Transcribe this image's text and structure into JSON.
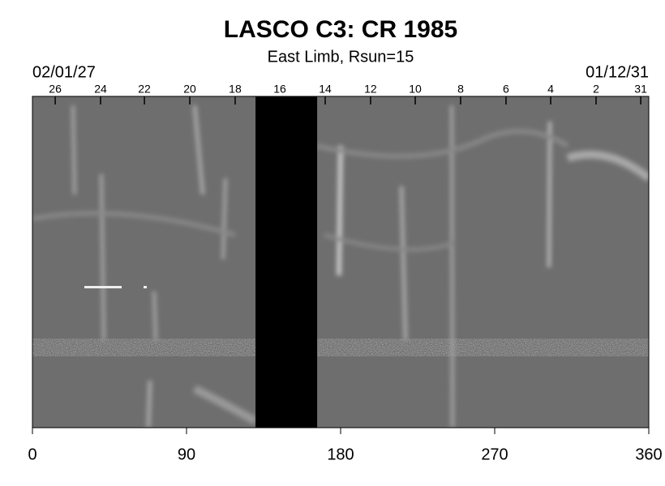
{
  "chart_data": {
    "type": "image",
    "title": "LASCO C3: CR 1985",
    "subtitle": "East Limb, Rsun=15",
    "start_date": "02/01/27",
    "end_date": "01/12/31",
    "xlim": [
      0,
      360
    ],
    "xticks": [
      0,
      90,
      180,
      270,
      360
    ],
    "top_ticks": [
      {
        "value": 13.3,
        "label": "26"
      },
      {
        "value": 39.8,
        "label": "24"
      },
      {
        "value": 65.4,
        "label": "22"
      },
      {
        "value": 91.9,
        "label": "20"
      },
      {
        "value": 118.4,
        "label": "18"
      },
      {
        "value": 144.5,
        "label": "16"
      },
      {
        "value": 171,
        "label": "14"
      },
      {
        "value": 197.5,
        "label": "12"
      },
      {
        "value": 223.6,
        "label": "10"
      },
      {
        "value": 250.1,
        "label": "8"
      },
      {
        "value": 276.6,
        "label": "6"
      },
      {
        "value": 302.7,
        "label": "4"
      },
      {
        "value": 329.2,
        "label": "2"
      },
      {
        "value": 355.3,
        "label": "31"
      }
    ],
    "gap": [
      130.3,
      166.3
    ]
  }
}
